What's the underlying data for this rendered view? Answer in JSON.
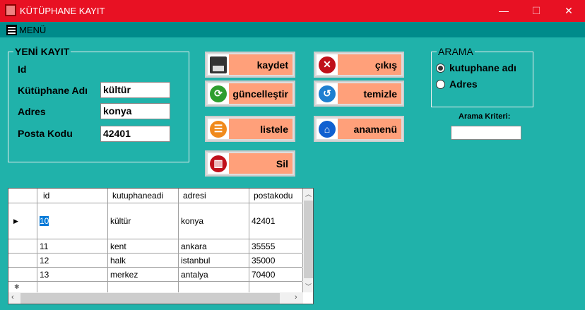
{
  "window": {
    "title": "KÜTÜPHANE KAYIT",
    "minimize": "—",
    "maximize": "☐",
    "close": "✕"
  },
  "menu": {
    "label": "MENÜ"
  },
  "new_record": {
    "legend": "YENİ KAYIT",
    "id_label": "Id",
    "name_label": "Kütüphane Adı",
    "name_value": "kültür",
    "address_label": "Adres",
    "address_value": "konya",
    "postal_label": "Posta Kodu",
    "postal_value": "42401"
  },
  "buttons": {
    "save": "kaydet",
    "update": "güncelleştir",
    "list": "listele",
    "delete": "Sil",
    "exit": "çıkış",
    "clear": "temizle",
    "main_menu": "anamenü"
  },
  "search": {
    "legend": "ARAMA",
    "option1": "kutuphane adı",
    "option2": "Adres",
    "selected": "kutuphane adı",
    "criteria_label": "Arama Kriteri:",
    "criteria_value": ""
  },
  "grid": {
    "columns": [
      "id",
      "kutuphaneadi",
      "adresi",
      "postakodu"
    ],
    "rows": [
      [
        "10",
        "kültür",
        "konya",
        "42401"
      ],
      [
        "11",
        "kent",
        "ankara",
        "35555"
      ],
      [
        "12",
        "halk",
        "istanbul",
        "35000"
      ],
      [
        "13",
        "merkez",
        "antalya",
        "70400"
      ]
    ]
  },
  "colors": {
    "titlebar": "#e81123",
    "menubar": "#008b8b",
    "background": "#20b2aa",
    "button": "#ffa07a"
  }
}
